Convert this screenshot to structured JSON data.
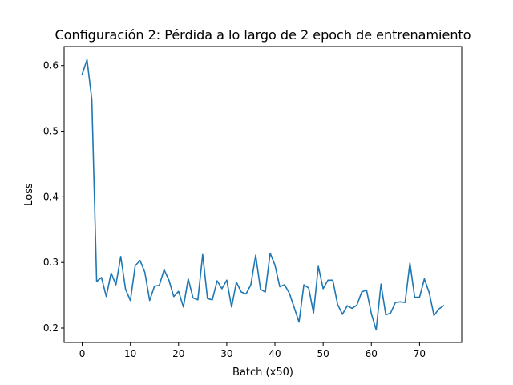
{
  "chart_data": {
    "type": "line",
    "title": "Configuración 2: Pérdida a lo largo de 2 epoch de entrenamiento",
    "xlabel": "Batch (x50)",
    "ylabel": "Loss",
    "xlim": [
      -3.75,
      78.75
    ],
    "ylim": [
      0.178,
      0.629
    ],
    "xticks": [
      0,
      10,
      20,
      30,
      40,
      50,
      60,
      70
    ],
    "yticks": [
      0.2,
      0.3,
      0.4,
      0.5,
      0.6
    ],
    "ytick_labels": [
      "0.2",
      "0.3",
      "0.4",
      "0.5",
      "0.6"
    ],
    "grid": false,
    "color": "#1f77b4",
    "series": [
      {
        "x": [
          0,
          1,
          2,
          3,
          4,
          5,
          6,
          7,
          8,
          9,
          10,
          11,
          12,
          13,
          14,
          15,
          16,
          17,
          18,
          19,
          20,
          21,
          22,
          23,
          24,
          25,
          26,
          27,
          28,
          29,
          30,
          31,
          32,
          33,
          34,
          35,
          36,
          37,
          38,
          39,
          40,
          41,
          42,
          43,
          44,
          45,
          46,
          47,
          48,
          49,
          50,
          51,
          52,
          53,
          54,
          55,
          56,
          57,
          58,
          59,
          60,
          61,
          62,
          63,
          64,
          65,
          66,
          67,
          68,
          69,
          70,
          71,
          72,
          73,
          74,
          75
        ],
        "values": [
          0.587,
          0.609,
          0.548,
          0.271,
          0.277,
          0.248,
          0.284,
          0.266,
          0.309,
          0.259,
          0.242,
          0.295,
          0.303,
          0.285,
          0.242,
          0.264,
          0.265,
          0.289,
          0.273,
          0.248,
          0.256,
          0.232,
          0.275,
          0.246,
          0.243,
          0.312,
          0.245,
          0.243,
          0.272,
          0.26,
          0.273,
          0.232,
          0.27,
          0.255,
          0.252,
          0.266,
          0.311,
          0.259,
          0.255,
          0.314,
          0.296,
          0.263,
          0.266,
          0.253,
          0.231,
          0.209,
          0.266,
          0.261,
          0.223,
          0.294,
          0.26,
          0.273,
          0.273,
          0.236,
          0.221,
          0.234,
          0.23,
          0.235,
          0.255,
          0.258,
          0.222,
          0.197,
          0.267,
          0.22,
          0.223,
          0.239,
          0.24,
          0.239,
          0.299,
          0.247,
          0.247,
          0.275,
          0.254,
          0.219,
          0.229,
          0.234
        ]
      }
    ]
  }
}
